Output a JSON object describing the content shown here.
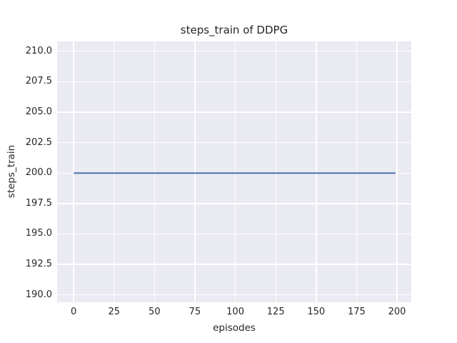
{
  "figure": {
    "title": "steps_train of DDPG",
    "xlabel": "episodes",
    "ylabel": "steps_train"
  },
  "chart_data": {
    "type": "line",
    "title": "steps_train of DDPG",
    "xlabel": "episodes",
    "ylabel": "steps_train",
    "series": [
      {
        "name": "steps_train",
        "x": [
          0,
          25,
          50,
          75,
          100,
          125,
          150,
          175,
          199
        ],
        "y": [
          200,
          200,
          200,
          200,
          200,
          200,
          200,
          200,
          200
        ],
        "color": "#4C72B0"
      }
    ],
    "xticks": [
      0,
      25,
      50,
      75,
      100,
      125,
      150,
      175,
      200
    ],
    "xtick_labels": [
      "0",
      "25",
      "50",
      "75",
      "100",
      "125",
      "150",
      "175",
      "200"
    ],
    "yticks": [
      190.0,
      192.5,
      195.0,
      197.5,
      200.0,
      202.5,
      205.0,
      207.5,
      210.0
    ],
    "ytick_labels": [
      "190.0",
      "192.5",
      "195.0",
      "197.5",
      "200.0",
      "202.5",
      "205.0",
      "207.5",
      "210.0"
    ],
    "xlim": [
      -10.2,
      208.8
    ],
    "ylim": [
      189.4,
      210.8
    ],
    "grid": true,
    "legend": null,
    "style": {
      "figure_bg": "#FFFFFF",
      "plot_bg": "#EAEAF2",
      "grid_color": "#FFFFFF",
      "text_color": "#262626",
      "line_color": "#4C72B0"
    }
  }
}
